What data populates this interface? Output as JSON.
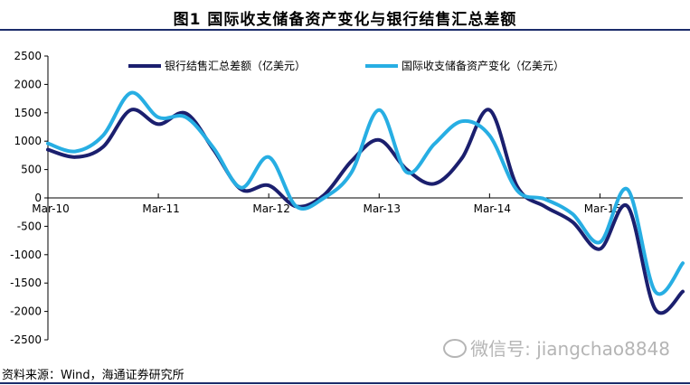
{
  "title": "图1   国际收支储备资产变化与银行结售汇总差额",
  "source": "资料来源：Wind，海通证券研究所",
  "watermark": "微信号: jiangchao8848",
  "colors": {
    "series1": "#1b1f6e",
    "series2": "#27aee3",
    "title_rule": "#1b2c6b"
  },
  "chart_data": {
    "type": "line",
    "ylim": [
      -2500,
      2500
    ],
    "yticks": [
      2500,
      2000,
      1500,
      1000,
      500,
      0,
      -500,
      -1000,
      -1500,
      -2000,
      -2500
    ],
    "xticks": [
      "Mar-10",
      "Mar-11",
      "Mar-12",
      "Mar-13",
      "Mar-14",
      "Mar-15"
    ],
    "x_count": 24,
    "legend_position": "top",
    "series": [
      {
        "name": "银行结售汇总差额（亿美元）",
        "values": [
          850,
          720,
          900,
          1550,
          1300,
          1490,
          850,
          150,
          220,
          -150,
          50,
          650,
          1020,
          500,
          250,
          700,
          1550,
          200,
          -150,
          -420,
          -900,
          -150,
          -1960,
          -1650
        ]
      },
      {
        "name": "国际收支储备资产变化（亿美元）",
        "values": [
          960,
          820,
          1100,
          1850,
          1420,
          1420,
          880,
          180,
          720,
          -150,
          0,
          450,
          1550,
          450,
          950,
          1350,
          1100,
          130,
          -20,
          -280,
          -780,
          150,
          -1650,
          -1150
        ]
      }
    ]
  }
}
